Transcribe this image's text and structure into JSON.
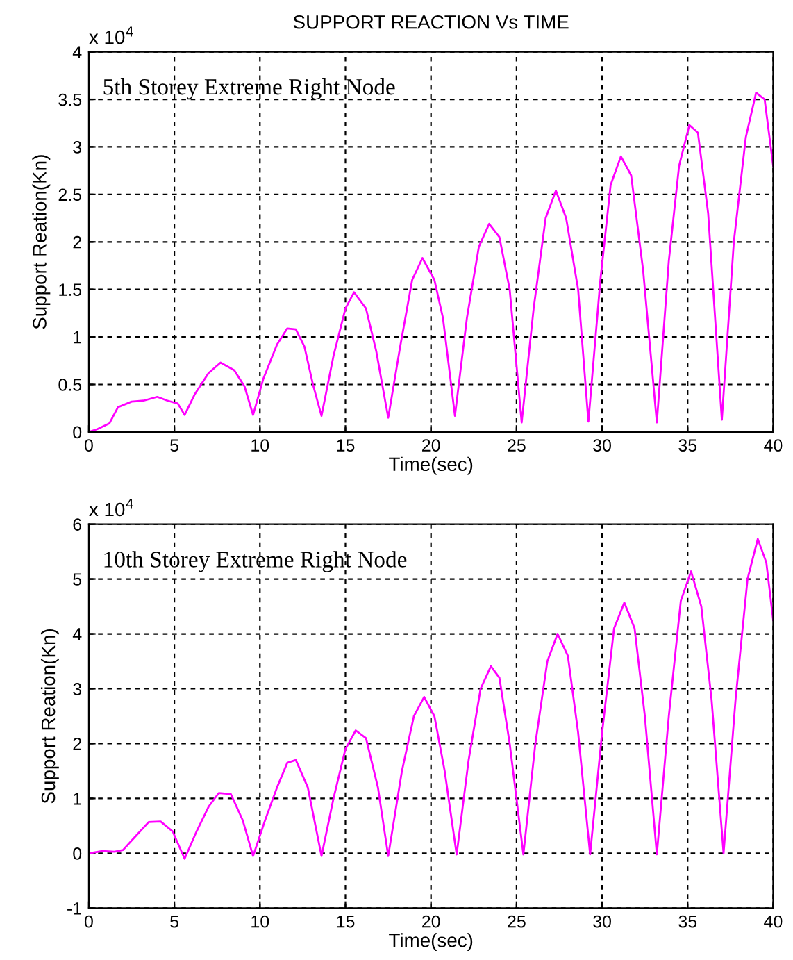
{
  "chart_data": [
    {
      "type": "line",
      "title": "SUPPORT REACTION Vs TIME",
      "xlabel": "Time(sec)",
      "ylabel": "Support Reation(Kn)",
      "annotations": [
        "5th Storey Extreme Right Node",
        "x 10$^{4}$"
      ],
      "xlim": [
        0,
        40
      ],
      "xticks": [
        0,
        5,
        10,
        15,
        20,
        25,
        30,
        35,
        40
      ],
      "ylim": [
        0,
        4
      ],
      "yticks": [
        0,
        0.5,
        1,
        1.5,
        2,
        2.5,
        3,
        3.5,
        4
      ],
      "grid": true,
      "line_style": "solid",
      "series": [
        {
          "color": "#ff00ff",
          "x": [
            0,
            0.5,
            1.2,
            1.7,
            2.5,
            3.2,
            4,
            4.6,
            5.2,
            5.6,
            6.2,
            7,
            7.7,
            8.5,
            9.1,
            9.6,
            10.2,
            11,
            11.6,
            12.1,
            12.6,
            13.1,
            13.6,
            14.3,
            15,
            15.5,
            16.2,
            16.8,
            17.5,
            18.2,
            18.9,
            19.5,
            20.2,
            20.7,
            21.4,
            22.1,
            22.8,
            23.4,
            24,
            24.6,
            25.3,
            26,
            26.7,
            27.3,
            27.9,
            28.6,
            29.2,
            29.9,
            30.5,
            31.1,
            31.7,
            32.4,
            33.2,
            33.9,
            34.5,
            35.1,
            35.6,
            36.2,
            37,
            37.7,
            38.4,
            39,
            39.5,
            40
          ],
          "values": [
            0,
            0.03,
            0.09,
            0.26,
            0.32,
            0.33,
            0.37,
            0.33,
            0.3,
            0.18,
            0.4,
            0.62,
            0.73,
            0.65,
            0.48,
            0.18,
            0.56,
            0.92,
            1.09,
            1.08,
            0.9,
            0.5,
            0.17,
            0.8,
            1.3,
            1.47,
            1.3,
            0.85,
            0.15,
            0.9,
            1.6,
            1.83,
            1.6,
            1.2,
            0.17,
            1.2,
            1.95,
            2.19,
            2.05,
            1.5,
            0.1,
            1.3,
            2.25,
            2.54,
            2.25,
            1.5,
            0.11,
            1.6,
            2.6,
            2.9,
            2.7,
            1.7,
            0.1,
            1.8,
            2.8,
            3.23,
            3.15,
            2.3,
            0.13,
            2.0,
            3.1,
            3.57,
            3.5,
            2.8
          ]
        }
      ]
    },
    {
      "type": "line",
      "xlabel": "Time(sec)",
      "ylabel": "Support Reation(Kn)",
      "annotations": [
        "10th Storey Extreme Right Node",
        "x 10$^{4}$"
      ],
      "xlim": [
        0,
        40
      ],
      "xticks": [
        0,
        5,
        10,
        15,
        20,
        25,
        30,
        35,
        40
      ],
      "ylim": [
        -1,
        6
      ],
      "yticks": [
        -1,
        0,
        1,
        2,
        3,
        4,
        5,
        6
      ],
      "grid": true,
      "line_style": "solid",
      "series": [
        {
          "color": "#ff00ff",
          "x": [
            0,
            0.8,
            1.5,
            2,
            2.7,
            3.5,
            4.2,
            4.9,
            5.6,
            6.3,
            7,
            7.6,
            8.3,
            9,
            9.6,
            10.3,
            11,
            11.6,
            12.1,
            12.8,
            13.6,
            14.3,
            15,
            15.6,
            16.2,
            16.9,
            17.5,
            18.3,
            19,
            19.6,
            20.2,
            20.8,
            21.5,
            22.2,
            22.9,
            23.5,
            24,
            24.6,
            25.4,
            26.1,
            26.8,
            27.4,
            28,
            28.6,
            29.3,
            30,
            30.7,
            31.3,
            31.9,
            32.5,
            33.2,
            33.9,
            34.6,
            35.2,
            35.8,
            36.4,
            37.1,
            37.8,
            38.5,
            39.1,
            39.6,
            40
          ],
          "values": [
            0,
            0.04,
            0.03,
            0.06,
            0.3,
            0.57,
            0.58,
            0.4,
            -0.1,
            0.4,
            0.85,
            1.1,
            1.08,
            0.6,
            -0.05,
            0.6,
            1.2,
            1.65,
            1.7,
            1.2,
            -0.05,
            1.0,
            1.9,
            2.24,
            2.1,
            1.2,
            -0.05,
            1.5,
            2.5,
            2.85,
            2.5,
            1.5,
            -0.02,
            1.7,
            3.0,
            3.41,
            3.2,
            2.0,
            -0.02,
            2.0,
            3.5,
            4.0,
            3.6,
            2.2,
            -0.02,
            2.2,
            4.1,
            4.57,
            4.1,
            2.5,
            -0.02,
            2.5,
            4.6,
            5.14,
            4.5,
            2.8,
            0,
            2.8,
            5.0,
            5.73,
            5.3,
            4.25
          ]
        }
      ]
    }
  ]
}
